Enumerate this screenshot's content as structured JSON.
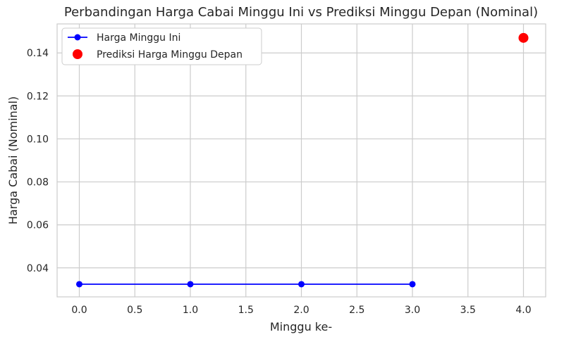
{
  "chart_data": {
    "type": "line",
    "title": "Perbandingan Harga Cabai Minggu Ini vs Prediksi Minggu Depan (Nominal)",
    "xlabel": "Minggu ke-",
    "ylabel": "Harga Cabai (Nominal)",
    "xlim": [
      -0.2,
      4.2
    ],
    "ylim": [
      0.0265,
      0.1535
    ],
    "x_ticks": [
      0.0,
      0.5,
      1.0,
      1.5,
      2.0,
      2.5,
      3.0,
      3.5,
      4.0
    ],
    "x_tick_labels": [
      "0.0",
      "0.5",
      "1.0",
      "1.5",
      "2.0",
      "2.5",
      "3.0",
      "3.5",
      "4.0"
    ],
    "y_ticks": [
      0.04,
      0.06,
      0.08,
      0.1,
      0.12,
      0.14
    ],
    "y_tick_labels": [
      "0.04",
      "0.06",
      "0.08",
      "0.10",
      "0.12",
      "0.14"
    ],
    "grid": true,
    "legend_position": "top-left",
    "series": [
      {
        "name": "Harga Minggu Ini",
        "kind": "line-marker",
        "color": "#0000ff",
        "x": [
          0,
          1,
          2,
          3
        ],
        "y": [
          0.0324,
          0.0324,
          0.0324,
          0.0324
        ]
      },
      {
        "name": "Prediksi Harga Minggu Depan",
        "kind": "scatter",
        "color": "#ff0000",
        "x": [
          4
        ],
        "y": [
          0.147
        ]
      }
    ]
  }
}
